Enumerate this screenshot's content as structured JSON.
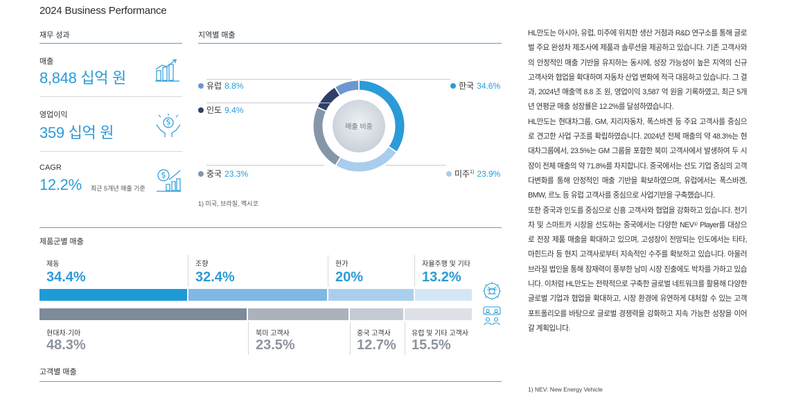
{
  "page": {
    "title": "2024 Business Performance"
  },
  "financial": {
    "section_title": "재무 성과",
    "revenue": {
      "label": "매출",
      "value": "8,848 십억 원"
    },
    "operating_profit": {
      "label": "영업이익",
      "value": "359 십억 원"
    },
    "cagr": {
      "label": "CAGR",
      "value": "12.2%",
      "note": "최근 5개년 매출 기준"
    }
  },
  "regional": {
    "section_title": "지역별 매출",
    "center_label": "매출 비중",
    "footnote": "1) 미국, 브라질, 멕시코",
    "items": [
      {
        "name": "한국",
        "percent": "34.6%",
        "value": 34.6,
        "color": "#2a9bd8"
      },
      {
        "name": "미주",
        "sup": "1)",
        "percent": "23.9%",
        "value": 23.9,
        "color": "#a9cdec"
      },
      {
        "name": "중국",
        "percent": "23.3%",
        "value": 23.3,
        "color": "#8596a8"
      },
      {
        "name": "인도",
        "percent": "9.4%",
        "value": 9.4,
        "color": "#2f3f67"
      },
      {
        "name": "유럽",
        "percent": "8.8%",
        "value": 8.8,
        "color": "#6e97cf"
      }
    ]
  },
  "product": {
    "section_title": "제품군별 매출",
    "items": [
      {
        "label": "제동",
        "value": "34.4%",
        "share": 34.4,
        "color": "#1e9bd7"
      },
      {
        "label": "조향",
        "value": "32.4%",
        "share": 32.4,
        "color": "#7fb8e4"
      },
      {
        "label": "현가",
        "value": "20%",
        "share": 20.0,
        "color": "#aacfee"
      },
      {
        "label": "자율주행 및 기타",
        "value": "13.2%",
        "share": 13.2,
        "color": "#d4e6f6"
      }
    ]
  },
  "customer": {
    "section_title": "고객별 매출",
    "items": [
      {
        "label": "현대차·기아",
        "value": "48.3%",
        "share": 48.3,
        "color": "#7d8a99"
      },
      {
        "label": "북미 고객사",
        "value": "23.5%",
        "share": 23.5,
        "color": "#aab2bc"
      },
      {
        "label": "중국 고객사",
        "value": "12.7%",
        "share": 12.7,
        "color": "#c5cbd2"
      },
      {
        "label": "유럽 및 기타 고객사",
        "value": "15.5%",
        "share": 15.5,
        "color": "#dde1e6"
      }
    ]
  },
  "body": {
    "paragraphs": [
      "HL만도는 아시아, 유럽, 미주에 위치한 생산 거점과 R&D 연구소를 통해 글로벌 주요 완성차 제조사에 제품과 솔루션을 제공하고 있습니다. 기존 고객사와의 안정적인 매출 기반을 유지하는 동시에, 성장 가능성이 높은 지역의 신규 고객사와 협업을 확대하며 자동차 산업 변화에 적극 대응하고 있습니다. 그 결과, 2024년 매출액 8.8 조 원, 영업이익 3,587 억 원을 기록하였고, 최근 5개년 연평균 매출 성장률은 12.2%를 달성하였습니다.",
      "HL만도는 현대차그룹, GM, 지리자동차, 폭스바겐 등 주요 고객사를 중심으로 견고한 사업 구조를 확립하였습니다. 2024년 전체 매출의 약 48.3%는 현대차그룹에서, 23.5%는 GM 그룹을 포함한 북미 고객사에서 발생하여 두 시장이 전체 매출의 약 71.8%를 차지합니다. 중국에서는 선도 기업 중심의 고객 다변화를 통해 안정적인 매출 기반을 확보하였으며, 유럽에서는 폭스바겐, BMW, 르노 등 유럽 고객사를 중심으로 사업기반을 구축했습니다.",
      "또한 중국과 인도를 중심으로 신흥 고객사와 협업을 강화하고 있습니다. 전기차 및 스마트카 시장을 선도하는 중국에서는 다양한 NEV¹⁾ Player를 대상으로 전장 제품 매출을 확대하고 있으며, 고성장이 전망되는 인도에서는 타타, 마힌드라 등 현지 고객사로부터 지속적인 수주를 확보하고 있습니다. 아울러 브라질 법인을 통해 잠재력이 풍부한 남미 시장 진출에도 박차를 가하고 있습니다. 이처럼 HL만도는 전략적으로 구축한 글로벌 네트워크를 활용해 다양한 글로벌 기업과 협업을 확대하고, 시장 환경에 유연하게 대처할 수 있는 고객 포트폴리오를 바탕으로 글로벌 경쟁력을 강화하고 지속 가능한 성장을 이어갈 계획입니다."
    ],
    "footnote": "1) NEV: New Energy Vehicle"
  }
}
